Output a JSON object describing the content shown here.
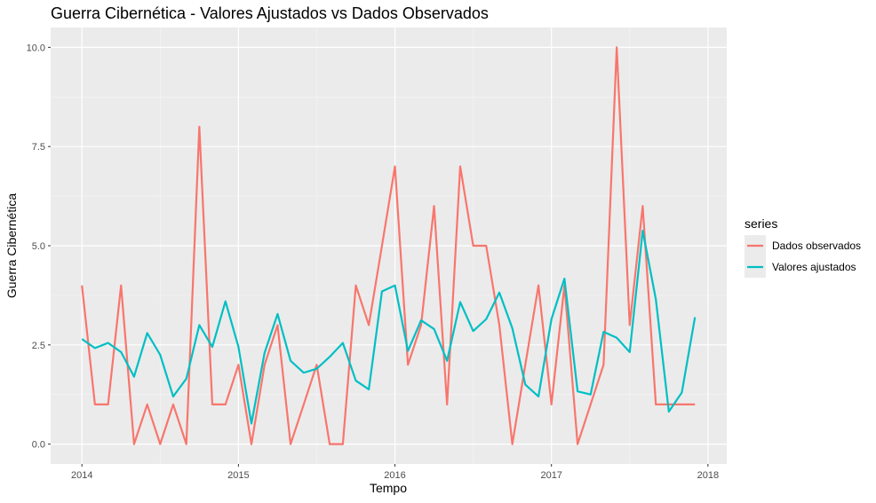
{
  "chart_data": {
    "type": "line",
    "title": "Guerra Cibernética - Valores Ajustados vs Dados Observados",
    "xlabel": "Tempo",
    "ylabel": "Guerra Cibernética",
    "xlim": [
      2013.8,
      2018.12
    ],
    "ylim": [
      -0.5,
      10.5
    ],
    "x_ticks": [
      2014,
      2015,
      2016,
      2017,
      2018
    ],
    "x_tick_labels": [
      "2014",
      "2015",
      "2016",
      "2017",
      "2018"
    ],
    "y_ticks": [
      0,
      2.5,
      5,
      7.5,
      10
    ],
    "y_tick_labels": [
      "0.0",
      "2.5",
      "5.0",
      "7.5",
      "10.0"
    ],
    "grid": true,
    "legend": {
      "title": "series",
      "position": "right"
    },
    "x": [
      2014.0,
      2014.083,
      2014.167,
      2014.25,
      2014.333,
      2014.417,
      2014.5,
      2014.583,
      2014.667,
      2014.75,
      2014.833,
      2014.917,
      2015.0,
      2015.083,
      2015.167,
      2015.25,
      2015.333,
      2015.417,
      2015.5,
      2015.583,
      2015.667,
      2015.75,
      2015.833,
      2015.917,
      2016.0,
      2016.083,
      2016.167,
      2016.25,
      2016.333,
      2016.417,
      2016.5,
      2016.583,
      2016.667,
      2016.75,
      2016.833,
      2016.917,
      2017.0,
      2017.083,
      2017.167,
      2017.25,
      2017.333,
      2017.417,
      2017.5,
      2017.583,
      2017.667,
      2017.75,
      2017.833,
      2017.917
    ],
    "series": [
      {
        "name": "Dados observados",
        "color": "#F8766D",
        "values": [
          4,
          1,
          1,
          4,
          0,
          1,
          0,
          1,
          0,
          8,
          1,
          1,
          2,
          0,
          2,
          3,
          0,
          1,
          2,
          0,
          0,
          4,
          3,
          5,
          7,
          2,
          3,
          6,
          1,
          7,
          5,
          5,
          3,
          0,
          2,
          4,
          1,
          4,
          0,
          1,
          2,
          10,
          3,
          6,
          1,
          1,
          1,
          1
        ]
      },
      {
        "name": "Valores ajustados",
        "color": "#00BFC4",
        "values": [
          2.65,
          2.42,
          2.55,
          2.32,
          1.7,
          2.8,
          2.25,
          1.2,
          1.65,
          3.0,
          2.45,
          3.6,
          2.45,
          0.52,
          2.3,
          3.28,
          2.1,
          1.8,
          1.9,
          2.2,
          2.55,
          1.6,
          1.38,
          3.85,
          4.0,
          2.35,
          3.12,
          2.9,
          2.1,
          3.58,
          2.85,
          3.15,
          3.82,
          2.92,
          1.5,
          1.2,
          3.15,
          4.17,
          1.33,
          1.25,
          2.83,
          2.68,
          2.32,
          5.38,
          3.65,
          0.82,
          1.3,
          3.2
        ]
      }
    ]
  }
}
